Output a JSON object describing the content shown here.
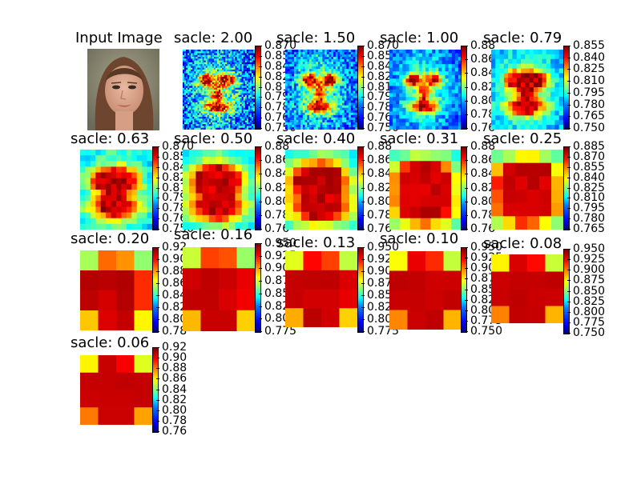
{
  "input_title": "Input Image",
  "chart_data": [
    {
      "type": "heatmap",
      "title": "sacle: 2.00",
      "scale": 2.0,
      "colorbar_ticks": [
        "0.870",
        "0.855",
        "0.840",
        "0.825",
        "0.810",
        "0.795",
        "0.780",
        "0.765",
        "0.750"
      ],
      "clim": [
        0.75,
        0.87
      ]
    },
    {
      "type": "heatmap",
      "title": "sacle: 1.50",
      "scale": 1.5,
      "colorbar_ticks": [
        "0.870",
        "0.855",
        "0.840",
        "0.825",
        "0.810",
        "0.795",
        "0.780",
        "0.765",
        "0.750"
      ],
      "clim": [
        0.75,
        0.87
      ]
    },
    {
      "type": "heatmap",
      "title": "sacle: 1.00",
      "scale": 1.0,
      "colorbar_ticks": [
        "0.88",
        "0.86",
        "0.84",
        "0.82",
        "0.80",
        "0.78",
        "0.76"
      ],
      "clim": [
        0.75,
        0.88
      ]
    },
    {
      "type": "heatmap",
      "title": "sacle: 0.79",
      "scale": 0.79,
      "colorbar_ticks": [
        "0.855",
        "0.840",
        "0.825",
        "0.810",
        "0.795",
        "0.780",
        "0.765",
        "0.750"
      ],
      "clim": [
        0.75,
        0.86
      ]
    },
    {
      "type": "heatmap",
      "title": "sacle: 0.63",
      "scale": 0.63,
      "colorbar_ticks": [
        "0.870",
        "0.855",
        "0.840",
        "0.825",
        "0.810",
        "0.795",
        "0.780",
        "0.765",
        "0.750"
      ],
      "clim": [
        0.75,
        0.87
      ]
    },
    {
      "type": "heatmap",
      "title": "sacle: 0.50",
      "scale": 0.5,
      "colorbar_ticks": [
        "0.88",
        "0.86",
        "0.84",
        "0.82",
        "0.80",
        "0.78",
        "0.76"
      ],
      "clim": [
        0.75,
        0.88
      ]
    },
    {
      "type": "heatmap",
      "title": "sacle: 0.40",
      "scale": 0.4,
      "colorbar_ticks": [
        "0.88",
        "0.86",
        "0.84",
        "0.82",
        "0.80",
        "0.78",
        "0.76"
      ],
      "clim": [
        0.75,
        0.88
      ]
    },
    {
      "type": "heatmap",
      "title": "sacle: 0.31",
      "scale": 0.31,
      "colorbar_ticks": [
        "0.88",
        "0.86",
        "0.84",
        "0.82",
        "0.80",
        "0.78",
        "0.76"
      ],
      "clim": [
        0.75,
        0.88
      ]
    },
    {
      "type": "heatmap",
      "title": "sacle: 0.25",
      "scale": 0.25,
      "colorbar_ticks": [
        "0.885",
        "0.870",
        "0.855",
        "0.840",
        "0.825",
        "0.810",
        "0.795",
        "0.780",
        "0.765"
      ],
      "clim": [
        0.76,
        0.89
      ]
    },
    {
      "type": "heatmap",
      "title": "sacle: 0.20",
      "scale": 0.2,
      "colorbar_ticks": [
        "0.92",
        "0.90",
        "0.88",
        "0.86",
        "0.84",
        "0.82",
        "0.80",
        "0.78"
      ],
      "clim": [
        0.77,
        0.93
      ]
    },
    {
      "type": "heatmap",
      "title": "sacle: 0.16",
      "scale": 0.16,
      "colorbar_ticks": [
        "0.950",
        "0.925",
        "0.900",
        "0.875",
        "0.850",
        "0.825",
        "0.800",
        "0.775"
      ],
      "clim": [
        0.77,
        0.95
      ]
    },
    {
      "type": "heatmap",
      "title": "sacle: 0.13",
      "scale": 0.13,
      "colorbar_ticks": [
        "0.950",
        "0.925",
        "0.900",
        "0.875",
        "0.850",
        "0.825",
        "0.800",
        "0.775"
      ],
      "clim": [
        0.77,
        0.95
      ]
    },
    {
      "type": "heatmap",
      "title": "sacle: 0.10",
      "scale": 0.1,
      "colorbar_ticks": [
        "0.950",
        "0.925",
        "0.900",
        "0.875",
        "0.850",
        "0.825",
        "0.800",
        "0.775",
        "0.750"
      ],
      "clim": [
        0.75,
        0.95
      ]
    },
    {
      "type": "heatmap",
      "title": "sacle: 0.08",
      "scale": 0.08,
      "colorbar_ticks": [
        "0.950",
        "0.925",
        "0.900",
        "0.875",
        "0.850",
        "0.825",
        "0.800",
        "0.775",
        "0.750"
      ],
      "clim": [
        0.75,
        0.95
      ]
    },
    {
      "type": "heatmap",
      "title": "sacle: 0.06",
      "scale": 0.06,
      "colorbar_ticks": [
        "0.92",
        "0.90",
        "0.88",
        "0.86",
        "0.84",
        "0.82",
        "0.80",
        "0.78",
        "0.76"
      ],
      "clim": [
        0.76,
        0.92
      ]
    }
  ]
}
